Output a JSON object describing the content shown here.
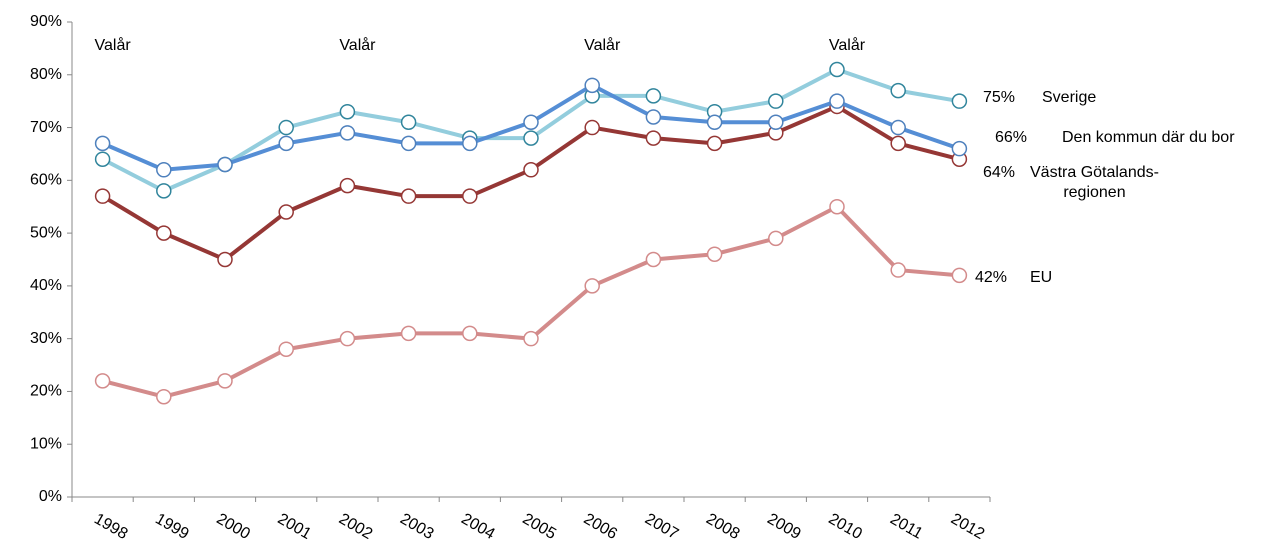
{
  "chart_data": {
    "type": "line",
    "categories": [
      "1998",
      "1999",
      "2000",
      "2001",
      "2002",
      "2003",
      "2004",
      "2005",
      "2006",
      "2007",
      "2008",
      "2009",
      "2010",
      "2011",
      "2012"
    ],
    "series": [
      {
        "name": "EU",
        "color": "#d38b8b",
        "marker_color": "#d38b8b",
        "values": [
          22,
          19,
          22,
          28,
          30,
          31,
          31,
          30,
          40,
          45,
          46,
          49,
          55,
          43,
          42
        ],
        "value_labels": [
          null,
          null,
          null,
          null,
          null,
          null,
          null,
          null,
          null,
          null,
          null,
          null,
          null,
          null,
          "42%"
        ]
      },
      {
        "name": "Västra Götalands-\nregionen",
        "color": "#953735",
        "marker_color": "#953735",
        "values": [
          57,
          50,
          45,
          54,
          59,
          57,
          57,
          62,
          70,
          68,
          67,
          69,
          74,
          67,
          64
        ],
        "value_labels": [
          null,
          null,
          null,
          null,
          null,
          null,
          null,
          null,
          null,
          null,
          null,
          null,
          null,
          null,
          "64%"
        ]
      },
      {
        "name": "Sverige",
        "color": "#93cddd",
        "marker_color": "#31859c",
        "values": [
          64,
          58,
          63,
          70,
          73,
          71,
          68,
          68,
          76,
          76,
          73,
          75,
          81,
          77,
          75
        ],
        "value_labels": [
          null,
          null,
          null,
          null,
          null,
          null,
          null,
          null,
          null,
          null,
          null,
          null,
          null,
          null,
          "75%"
        ]
      },
      {
        "name": "Den kommun där du bor",
        "color": "#558ed5",
        "marker_color": "#4f81bd",
        "values": [
          67,
          62,
          63,
          67,
          69,
          67,
          67,
          71,
          78,
          72,
          71,
          71,
          75,
          70,
          66
        ],
        "value_labels": [
          null,
          null,
          null,
          null,
          null,
          null,
          null,
          null,
          null,
          null,
          null,
          null,
          null,
          null,
          "66%"
        ]
      }
    ],
    "annotations": [
      {
        "text": "Valår",
        "x": "1998"
      },
      {
        "text": "Valår",
        "x": "2002"
      },
      {
        "text": "Valår",
        "x": "2006"
      },
      {
        "text": "Valår",
        "x": "2010"
      }
    ],
    "ylim": [
      0,
      90
    ],
    "yticks": [
      {
        "value": 0,
        "label": "0%"
      },
      {
        "value": 10,
        "label": "10%"
      },
      {
        "value": 20,
        "label": "20%"
      },
      {
        "value": 30,
        "label": "30%"
      },
      {
        "value": 40,
        "label": "40%"
      },
      {
        "value": 50,
        "label": "50%"
      },
      {
        "value": 60,
        "label": "60%"
      },
      {
        "value": 70,
        "label": "70%"
      },
      {
        "value": 80,
        "label": "80%"
      },
      {
        "value": 90,
        "label": "90%"
      }
    ],
    "grid": false
  }
}
